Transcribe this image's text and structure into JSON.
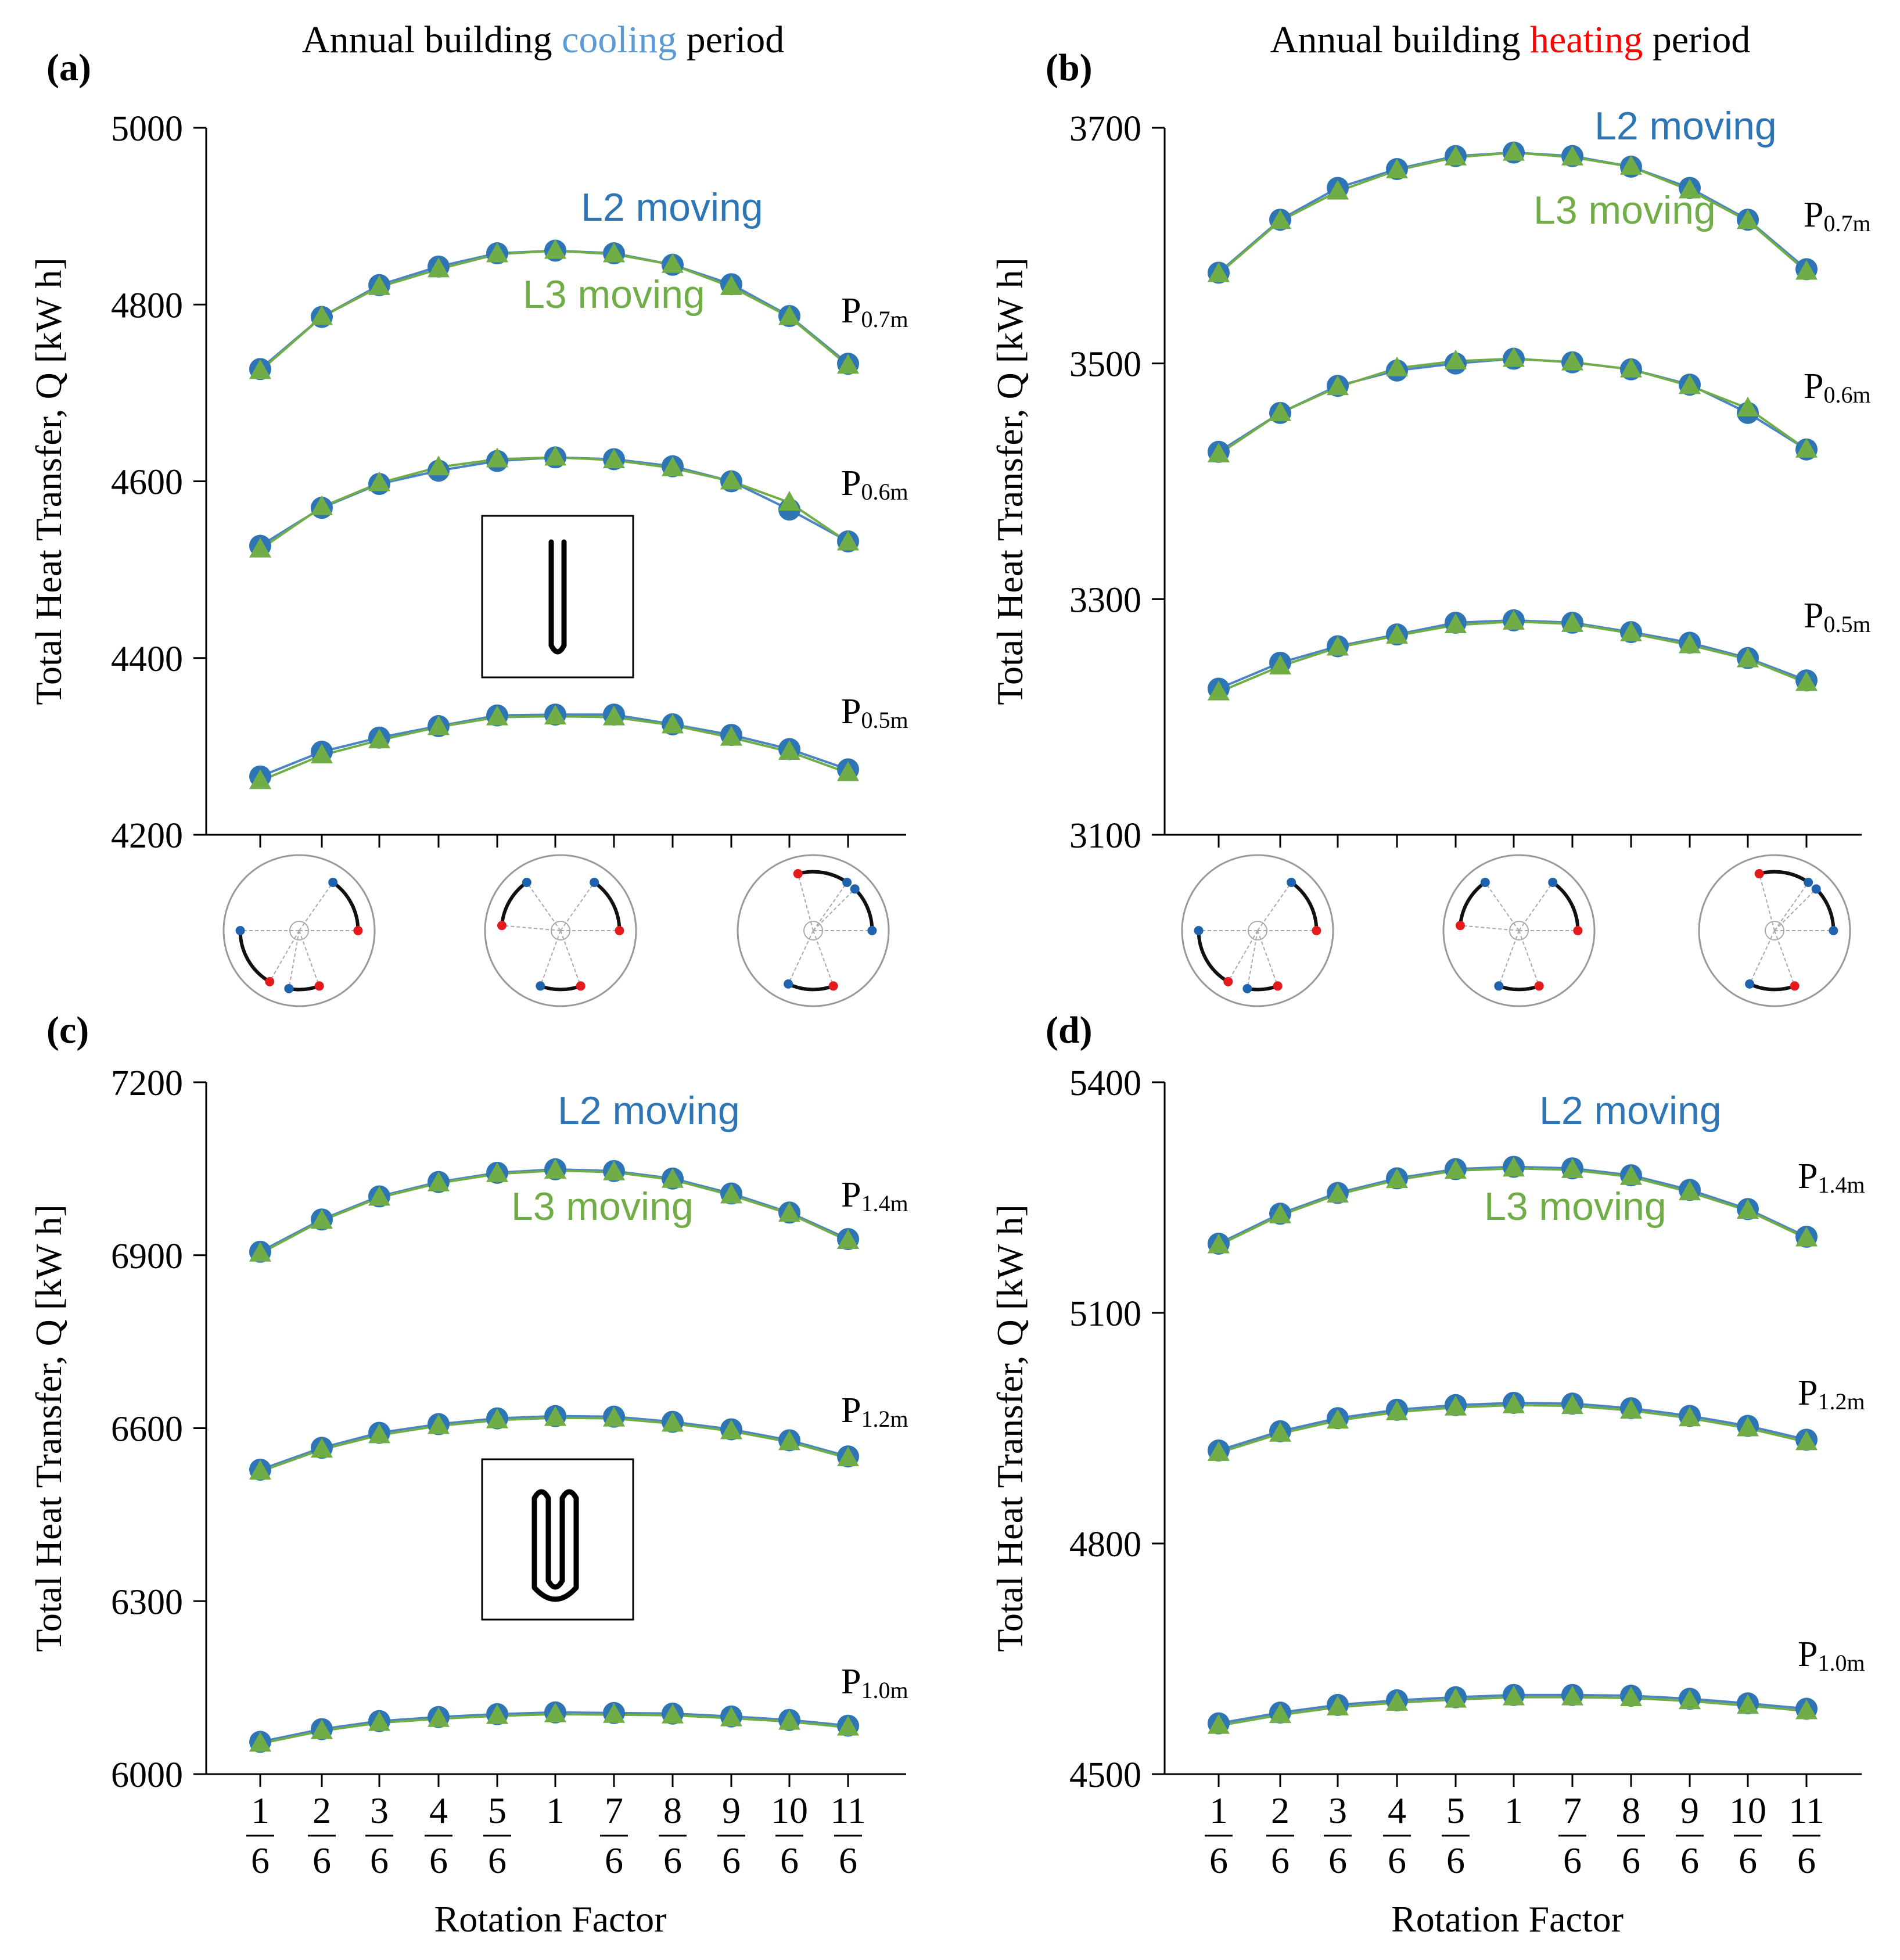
{
  "colors": {
    "l2": "#2E75B6",
    "l2_line": "#4A84C4",
    "l3": "#70AD47",
    "cooling": "#5B9BD5",
    "heating": "#FF0000",
    "axis": "#000000",
    "inset_red": "#E41A1C",
    "inset_blue": "#1F63AE"
  },
  "x_axis_label": "Rotation Factor",
  "x_ticks": [
    {
      "num": "1",
      "den": "6"
    },
    {
      "num": "2",
      "den": "6"
    },
    {
      "num": "3",
      "den": "6"
    },
    {
      "num": "4",
      "den": "6"
    },
    {
      "num": "5",
      "den": "6"
    },
    {
      "num": "1",
      "den": ""
    },
    {
      "num": "7",
      "den": "6"
    },
    {
      "num": "8",
      "den": "6"
    },
    {
      "num": "9",
      "den": "6"
    },
    {
      "num": "10",
      "den": "6"
    },
    {
      "num": "11",
      "den": "6"
    }
  ],
  "titles": {
    "a": {
      "pre": "Annual building ",
      "word": "cooling",
      "post": " period"
    },
    "b": {
      "pre": "Annual building ",
      "word": "heating",
      "post": " period"
    }
  },
  "inset_icons": [
    "single-u-tube-icon",
    "double-u-tube-icon"
  ],
  "chart_data": [
    {
      "type": "line",
      "panel": "(a)",
      "ylabel": "Total Heat Transfer, Q [kW h]",
      "xlabel": "Rotation Factor",
      "ylim": [
        4200,
        5000
      ],
      "yticks": [
        4200,
        4400,
        4600,
        4800,
        5000
      ],
      "x": [
        0.1667,
        0.3333,
        0.5,
        0.6667,
        0.8333,
        1.0,
        1.1667,
        1.3333,
        1.5,
        1.6667,
        1.8333
      ],
      "annotations": {
        "l2": "L2 moving",
        "l3": "L3 moving"
      },
      "groups": [
        {
          "label_main": "P",
          "label_sub": "0.7m",
          "series": [
            {
              "name": "L2 moving",
              "values": [
                4727,
                4786,
                4822,
                4843,
                4858,
                4861,
                4858,
                4845,
                4823,
                4787,
                4733
              ]
            },
            {
              "name": "L3 moving",
              "values": [
                4725,
                4786,
                4820,
                4840,
                4857,
                4861,
                4857,
                4845,
                4820,
                4786,
                4731
              ]
            }
          ]
        },
        {
          "label_main": "P",
          "label_sub": "0.6m",
          "series": [
            {
              "name": "L2 moving",
              "values": [
                4527,
                4570,
                4597,
                4612,
                4623,
                4627,
                4625,
                4617,
                4600,
                4568,
                4532
              ]
            },
            {
              "name": "L3 moving",
              "values": [
                4523,
                4571,
                4598,
                4616,
                4625,
                4627,
                4624,
                4615,
                4600,
                4576,
                4531
              ]
            }
          ]
        },
        {
          "label_main": "P",
          "label_sub": "0.5m",
          "series": [
            {
              "name": "L2 moving",
              "values": [
                4266,
                4294,
                4310,
                4323,
                4335,
                4336,
                4336,
                4325,
                4313,
                4297,
                4274
              ]
            },
            {
              "name": "L3 moving",
              "values": [
                4261,
                4290,
                4307,
                4322,
                4333,
                4334,
                4333,
                4324,
                4310,
                4294,
                4270
              ]
            }
          ]
        }
      ]
    },
    {
      "type": "line",
      "panel": "(b)",
      "ylabel": "Total Heat Transfer, Q [kW h]",
      "xlabel": "Rotation Factor",
      "ylim": [
        3100,
        3700
      ],
      "yticks": [
        3100,
        3300,
        3500,
        3700
      ],
      "x": [
        0.1667,
        0.3333,
        0.5,
        0.6667,
        0.8333,
        1.0,
        1.1667,
        1.3333,
        1.5,
        1.6667,
        1.8333
      ],
      "annotations": {
        "l2": "L2 moving",
        "l3": "L3 moving"
      },
      "groups": [
        {
          "label_main": "P",
          "label_sub": "0.7m",
          "series": [
            {
              "name": "L2 moving",
              "values": [
                3577,
                3622,
                3649,
                3665,
                3676,
                3679,
                3676,
                3667,
                3649,
                3622,
                3580
              ]
            },
            {
              "name": "L3 moving",
              "values": [
                3576,
                3621,
                3646,
                3664,
                3675,
                3679,
                3675,
                3667,
                3647,
                3621,
                3578
              ]
            }
          ]
        },
        {
          "label_main": "P",
          "label_sub": "0.6m",
          "series": [
            {
              "name": "L2 moving",
              "values": [
                3425,
                3458,
                3481,
                3494,
                3500,
                3504,
                3501,
                3495,
                3482,
                3458,
                3427
              ]
            },
            {
              "name": "L3 moving",
              "values": [
                3423,
                3458,
                3480,
                3496,
                3502,
                3504,
                3501,
                3495,
                3481,
                3462,
                3427
              ]
            }
          ]
        },
        {
          "label_main": "P",
          "label_sub": "0.5m",
          "series": [
            {
              "name": "L2 moving",
              "values": [
                3224,
                3246,
                3260,
                3270,
                3280,
                3282,
                3280,
                3272,
                3263,
                3250,
                3231
              ]
            },
            {
              "name": "L3 moving",
              "values": [
                3221,
                3243,
                3259,
                3269,
                3278,
                3281,
                3279,
                3271,
                3261,
                3249,
                3229
              ]
            }
          ]
        }
      ]
    },
    {
      "type": "line",
      "panel": "(c)",
      "ylabel": "Total Heat Transfer, Q [kW h]",
      "xlabel": "Rotation Factor",
      "ylim": [
        6000,
        7200
      ],
      "yticks": [
        6000,
        6300,
        6600,
        6900,
        7200
      ],
      "x": [
        0.1667,
        0.3333,
        0.5,
        0.6667,
        0.8333,
        1.0,
        1.1667,
        1.3333,
        1.5,
        1.6667,
        1.8333
      ],
      "annotations": {
        "l2": "L2 moving",
        "l3": "L3 moving"
      },
      "groups": [
        {
          "label_main": "P",
          "label_sub": "1.4m",
          "series": [
            {
              "name": "L2 moving",
              "values": [
                6906,
                6962,
                7002,
                7027,
                7043,
                7049,
                7046,
                7033,
                7007,
                6974,
                6928
              ]
            },
            {
              "name": "L3 moving",
              "values": [
                6903,
                6960,
                7000,
                7025,
                7041,
                7047,
                7044,
                7031,
                7004,
                6972,
                6925
              ]
            }
          ]
        },
        {
          "label_main": "P",
          "label_sub": "1.2m",
          "series": [
            {
              "name": "L2 moving",
              "values": [
                6528,
                6566,
                6592,
                6607,
                6617,
                6621,
                6620,
                6611,
                6598,
                6579,
                6551
              ]
            },
            {
              "name": "L3 moving",
              "values": [
                6525,
                6563,
                6588,
                6604,
                6614,
                6618,
                6617,
                6608,
                6595,
                6576,
                6548
              ]
            }
          ]
        },
        {
          "label_main": "P",
          "label_sub": "1.0m",
          "series": [
            {
              "name": "L2 moving",
              "values": [
                6056,
                6078,
                6092,
                6099,
                6104,
                6107,
                6106,
                6105,
                6100,
                6094,
                6084
              ]
            },
            {
              "name": "L3 moving",
              "values": [
                6053,
                6075,
                6089,
                6096,
                6101,
                6104,
                6103,
                6102,
                6097,
                6091,
                6081
              ]
            }
          ]
        }
      ]
    },
    {
      "type": "line",
      "panel": "(d)",
      "ylabel": "Total Heat Transfer, Q [kW h]",
      "xlabel": "Rotation Factor",
      "ylim": [
        4500,
        5400
      ],
      "yticks": [
        4500,
        4800,
        5100,
        5400
      ],
      "x": [
        0.1667,
        0.3333,
        0.5,
        0.6667,
        0.8333,
        1.0,
        1.1667,
        1.3333,
        1.5,
        1.6667,
        1.8333
      ],
      "annotations": {
        "l2": "L2 moving",
        "l3": "L3 moving"
      },
      "groups": [
        {
          "label_main": "P",
          "label_sub": "1.4m",
          "series": [
            {
              "name": "L2 moving",
              "values": [
                5190,
                5229,
                5256,
                5275,
                5287,
                5290,
                5288,
                5279,
                5260,
                5235,
                5199
              ]
            },
            {
              "name": "L3 moving",
              "values": [
                5188,
                5227,
                5254,
                5273,
                5285,
                5288,
                5286,
                5277,
                5257,
                5233,
                5197
              ]
            }
          ]
        },
        {
          "label_main": "P",
          "label_sub": "1.2m",
          "series": [
            {
              "name": "L2 moving",
              "values": [
                4921,
                4946,
                4963,
                4974,
                4980,
                4983,
                4982,
                4976,
                4966,
                4953,
                4935
              ]
            },
            {
              "name": "L3 moving",
              "values": [
                4918,
                4943,
                4960,
                4971,
                4977,
                4980,
                4979,
                4973,
                4963,
                4950,
                4932
              ]
            }
          ]
        },
        {
          "label_main": "P",
          "label_sub": "1.0m",
          "series": [
            {
              "name": "L2 moving",
              "values": [
                4566,
                4580,
                4590,
                4596,
                4600,
                4603,
                4603,
                4602,
                4598,
                4592,
                4585
              ]
            },
            {
              "name": "L3 moving",
              "values": [
                4563,
                4577,
                4587,
                4593,
                4597,
                4600,
                4600,
                4599,
                4595,
                4589,
                4582
              ]
            }
          ]
        }
      ]
    }
  ]
}
